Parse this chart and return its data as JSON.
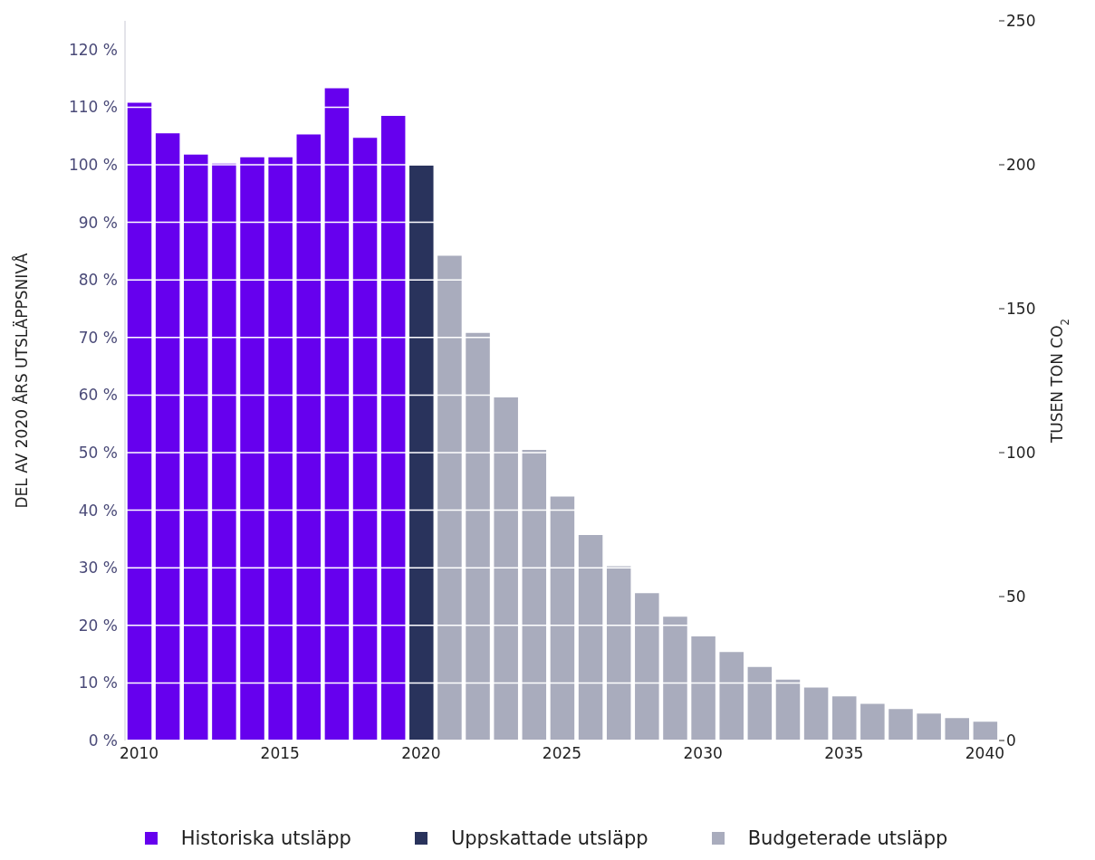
{
  "chart_data": {
    "type": "bar",
    "stacked": true,
    "x": [
      2010,
      2011,
      2012,
      2013,
      2014,
      2015,
      2016,
      2017,
      2018,
      2019,
      2020,
      2021,
      2022,
      2023,
      2024,
      2025,
      2026,
      2027,
      2028,
      2029,
      2030,
      2031,
      2032,
      2033,
      2034,
      2035,
      2036,
      2037,
      2038,
      2039,
      2040
    ],
    "series": [
      {
        "name": "Historiska utsläpp",
        "color": "#6600ee",
        "values": [
          110.9,
          105.6,
          101.9,
          100.3,
          101.4,
          101.4,
          105.4,
          113.4,
          104.8,
          108.6,
          null,
          null,
          null,
          null,
          null,
          null,
          null,
          null,
          null,
          null,
          null,
          null,
          null,
          null,
          null,
          null,
          null,
          null,
          null,
          null,
          null
        ]
      },
      {
        "name": "Uppskattade utsläpp",
        "color": "#29335c",
        "values": [
          null,
          null,
          null,
          null,
          null,
          null,
          null,
          null,
          null,
          null,
          100,
          null,
          null,
          null,
          null,
          null,
          null,
          null,
          null,
          null,
          null,
          null,
          null,
          null,
          null,
          null,
          null,
          null,
          null,
          null,
          null
        ]
      },
      {
        "name": "Budgeterade utsläpp",
        "color": "#a9acbd",
        "values": [
          null,
          null,
          null,
          null,
          null,
          null,
          null,
          null,
          null,
          null,
          null,
          84.3,
          70.9,
          59.7,
          50.6,
          42.5,
          35.8,
          30.4,
          25.7,
          21.6,
          18.2,
          15.5,
          12.9,
          10.7,
          9.3,
          7.8,
          6.5,
          5.6,
          4.8,
          4.0,
          3.4
        ]
      }
    ],
    "xlim": [
      2009.5,
      2040.5
    ],
    "xticks": [
      2010,
      2015,
      2020,
      2025,
      2030,
      2035,
      2040
    ],
    "ylabel": "DEL AV 2020 ÅRS UTSLÄPPSNIVÅ",
    "ylim": [
      0,
      125
    ],
    "yticks": [
      {
        "value": 0,
        "label": "0 %"
      },
      {
        "value": 10,
        "label": "10 %"
      },
      {
        "value": 20,
        "label": "20 %"
      },
      {
        "value": 30,
        "label": "30 %"
      },
      {
        "value": 40,
        "label": "40 %"
      },
      {
        "value": 50,
        "label": "50 %"
      },
      {
        "value": 60,
        "label": "60 %"
      },
      {
        "value": 70,
        "label": "70 %"
      },
      {
        "value": 80,
        "label": "80 %"
      },
      {
        "value": 90,
        "label": "90 %"
      },
      {
        "value": 100,
        "label": "100 %"
      },
      {
        "value": 110,
        "label": "110 %"
      },
      {
        "value": 120,
        "label": "120 %"
      }
    ],
    "y2label": "TUSEN TON CO$_{2}$",
    "y2lim": [
      0,
      250
    ],
    "y2ticks": [
      0,
      50,
      100,
      150,
      200,
      250
    ],
    "grid": "y",
    "legend": "bottom"
  }
}
